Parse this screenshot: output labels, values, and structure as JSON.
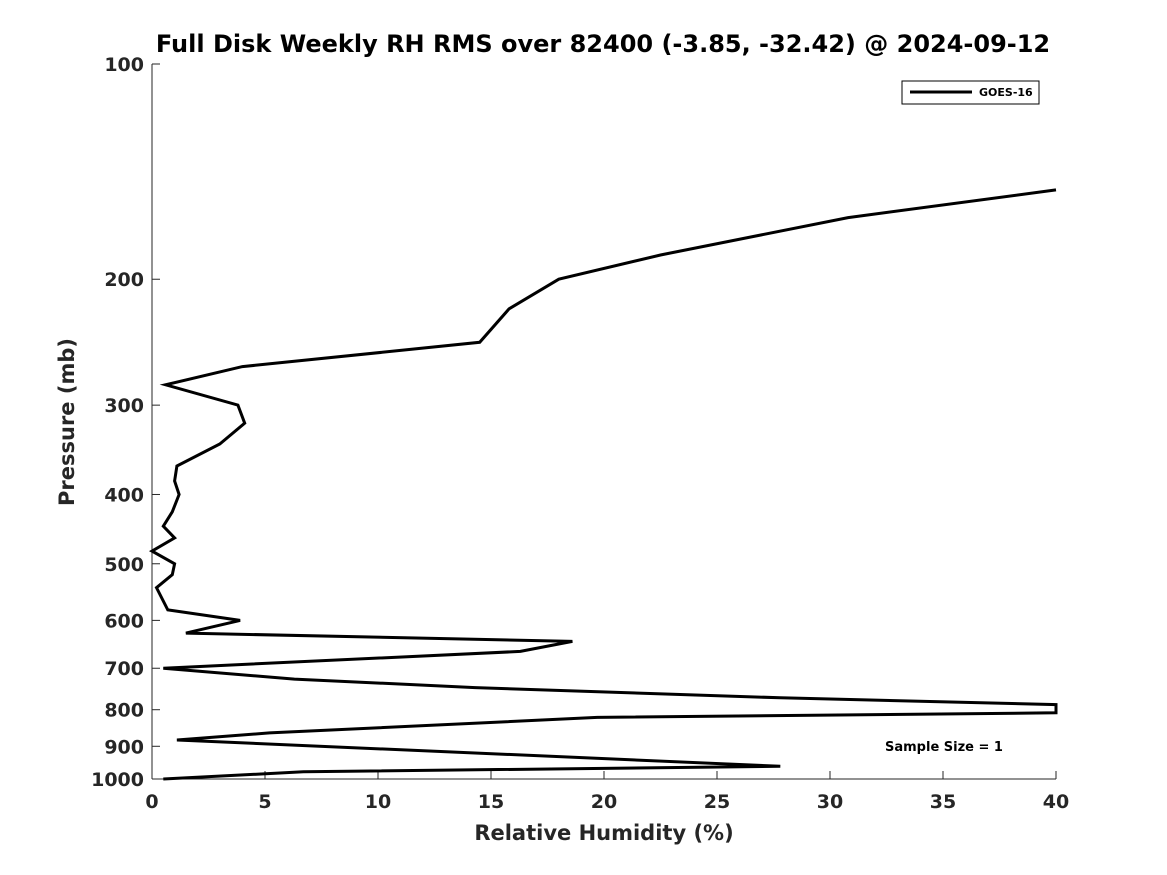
{
  "chart_data": {
    "type": "line",
    "title": "Full Disk Weekly RH RMS over 82400 (-3.85, -32.42) @ 2024-09-12",
    "xlabel": "Relative Humidity (%)",
    "ylabel": "Pressure (mb)",
    "xlim": [
      0,
      40
    ],
    "ylim": [
      100,
      1000
    ],
    "y_scale": "log",
    "y_reversed": true,
    "grid": false,
    "legend_position": "top-right",
    "x_ticks": [
      0,
      5,
      10,
      15,
      20,
      25,
      30,
      35,
      40
    ],
    "y_ticks": [
      100,
      200,
      300,
      400,
      500,
      600,
      700,
      800,
      900,
      1000
    ],
    "annotation": "Sample Size = 1",
    "series": [
      {
        "name": "GOES-16",
        "color": "#000000",
        "points": [
          [
            40.0,
            150
          ],
          [
            30.8,
            164
          ],
          [
            22.5,
            185
          ],
          [
            18.0,
            200
          ],
          [
            15.8,
            220
          ],
          [
            14.5,
            245
          ],
          [
            4.0,
            265
          ],
          [
            0.6,
            281
          ],
          [
            3.8,
            300
          ],
          [
            4.1,
            318
          ],
          [
            3.0,
            340
          ],
          [
            1.1,
            365
          ],
          [
            1.0,
            383
          ],
          [
            1.2,
            400
          ],
          [
            0.9,
            423
          ],
          [
            0.5,
            443
          ],
          [
            1.0,
            460
          ],
          [
            0.0,
            480
          ],
          [
            1.0,
            500
          ],
          [
            0.9,
            518
          ],
          [
            0.2,
            540
          ],
          [
            0.7,
            580
          ],
          [
            3.9,
            600
          ],
          [
            1.5,
            625
          ],
          [
            18.6,
            642
          ],
          [
            16.3,
            663
          ],
          [
            0.5,
            700
          ],
          [
            6.3,
            725
          ],
          [
            14.3,
            745
          ],
          [
            27.8,
            770
          ],
          [
            40.0,
            787
          ],
          [
            40.0,
            808
          ],
          [
            19.7,
            820
          ],
          [
            5.2,
            862
          ],
          [
            1.1,
            882
          ],
          [
            27.8,
            960
          ],
          [
            6.7,
            977
          ],
          [
            0.5,
            1000
          ]
        ]
      }
    ]
  }
}
